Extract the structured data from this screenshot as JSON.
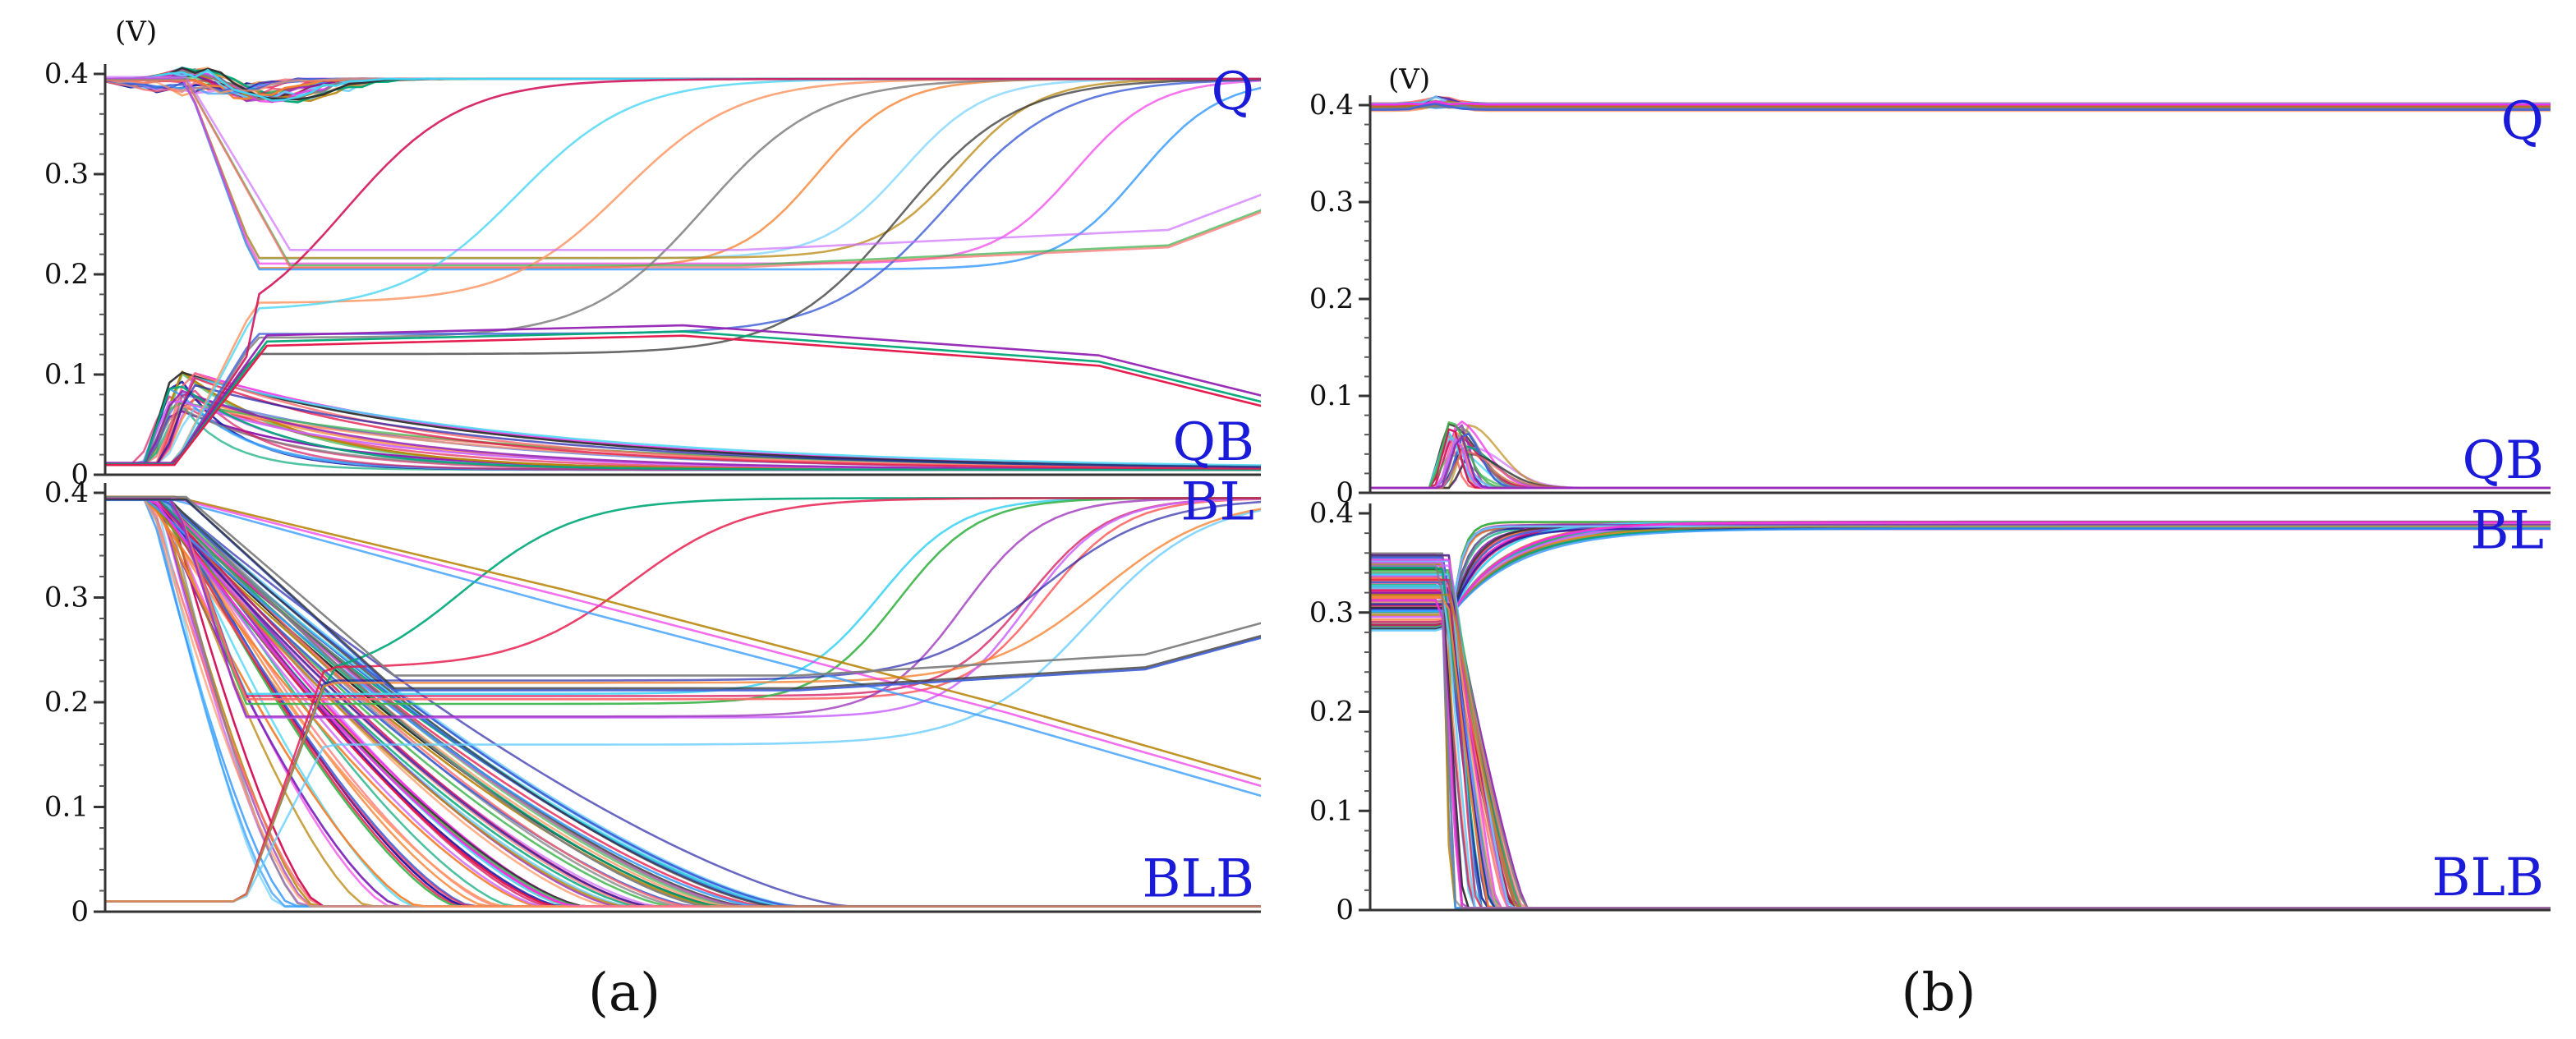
{
  "figure": {
    "panel_a_caption": "(a)",
    "panel_b_caption": "(b)"
  },
  "chart_data": [
    {
      "type": "line",
      "panel": "(a)",
      "unit_label": "(V)",
      "xlabel": "",
      "ylabel": "",
      "grid": false,
      "legend": "none",
      "trace_palette": [
        "#e6194b",
        "#3cb44b",
        "#4363d8",
        "#f58231",
        "#911eb4",
        "#42d4f4",
        "#f032e6",
        "#1a1aa6",
        "#ff6b6b",
        "#2f2f2f",
        "#b8860b",
        "#00a878",
        "#d4145a",
        "#7f7f7f",
        "#66ccff",
        "#cc66ff",
        "#ff9966",
        "#3399ff"
      ],
      "subplots": [
        {
          "name": "top",
          "ylim": [
            0,
            0.4
          ],
          "yticks": [
            "0",
            "0.1",
            "0.2",
            "0.3",
            "0.4"
          ],
          "signal_labels": [
            {
              "text": "Q",
              "y": 0.36
            },
            {
              "text": "QB",
              "y": 0.01
            }
          ],
          "groups": [
            {
              "count": 30,
              "kind": "sigmoid",
              "y0": 0.395,
              "y1": 0.395,
              "t_mid": 0.12,
              "t_mid_spread": 0.05,
              "rate": 0.04,
              "bump": 0.015,
              "bump_t": 0.08
            },
            {
              "count": 26,
              "kind": "relax",
              "y0": 0.01,
              "y_peak": 0.085,
              "y_peak_spread": 0.02,
              "y1": 0.005,
              "t_start": 0.04,
              "t_start_spread": 0.012,
              "decay": 0.18,
              "decay_spread": 0.14
            },
            {
              "count": 5,
              "kind": "dip_recover",
              "y0": 0.395,
              "y_mid": 0.21,
              "y_mid_spread": 0.01,
              "y1": 0.395,
              "t_start": 0.07,
              "t_rise": 0.72,
              "t_rise_spread": 0.2
            },
            {
              "count": 6,
              "kind": "cross_up",
              "y0": 0.01,
              "y_mid": 0.15,
              "y_mid_spread": 0.04,
              "y1": 0.395,
              "t_start": 0.06,
              "t_rise": 0.55,
              "t_rise_spread": 0.35
            },
            {
              "count": 3,
              "kind": "fixed",
              "points": [
                [
                  0,
                  0.395
                ],
                [
                  0.07,
                  0.395
                ],
                [
                  0.16,
                  0.215
                ],
                [
                  0.55,
                  0.215
                ],
                [
                  0.92,
                  0.235
                ],
                [
                  1,
                  0.27
                ]
              ]
            },
            {
              "count": 3,
              "kind": "fixed",
              "points": [
                [
                  0,
                  0.01
                ],
                [
                  0.06,
                  0.01
                ],
                [
                  0.14,
                  0.13
                ],
                [
                  0.5,
                  0.14
                ],
                [
                  0.86,
                  0.11
                ],
                [
                  1,
                  0.07
                ]
              ]
            }
          ]
        },
        {
          "name": "bottom",
          "ylim": [
            0,
            0.4
          ],
          "yticks": [
            "0",
            "0.1",
            "0.2",
            "0.3",
            "0.4"
          ],
          "signal_labels": [
            {
              "text": "BL",
              "y": 0.37
            },
            {
              "text": "BLB",
              "y": 0.01
            }
          ],
          "groups": [
            {
              "count": 70,
              "kind": "decay",
              "y0": 0.395,
              "y1": 0.005,
              "t_start": 0.045,
              "t_start_spread": 0.01,
              "t_end": 0.14,
              "t_end_spread": 0.5
            },
            {
              "count": 6,
              "kind": "dip_recover",
              "y0": 0.395,
              "y_mid": 0.2,
              "y_mid_spread": 0.015,
              "y1": 0.395,
              "t_start": 0.06,
              "t_rise": 0.72,
              "t_rise_spread": 0.2
            },
            {
              "count": 5,
              "kind": "cross_up",
              "y0": 0.01,
              "y_mid": 0.2,
              "y_mid_spread": 0.05,
              "y1": 0.395,
              "t_start": 0.12,
              "t_rise": 0.6,
              "t_rise_spread": 0.3
            },
            {
              "count": 3,
              "kind": "fixed",
              "points": [
                [
                  0,
                  0.395
                ],
                [
                  0.06,
                  0.395
                ],
                [
                  0.4,
                  0.3
                ],
                [
                  0.78,
                  0.19
                ],
                [
                  1,
                  0.12
                ]
              ]
            },
            {
              "count": 3,
              "kind": "fixed",
              "points": [
                [
                  0,
                  0.395
                ],
                [
                  0.07,
                  0.395
                ],
                [
                  0.25,
                  0.22
                ],
                [
                  0.6,
                  0.22
                ],
                [
                  0.9,
                  0.24
                ],
                [
                  1,
                  0.27
                ]
              ]
            }
          ]
        }
      ]
    },
    {
      "type": "line",
      "panel": "(b)",
      "unit_label": "(V)",
      "xlabel": "",
      "ylabel": "",
      "grid": false,
      "legend": "none",
      "trace_palette": [
        "#e6194b",
        "#3cb44b",
        "#4363d8",
        "#f58231",
        "#911eb4",
        "#42d4f4",
        "#f032e6",
        "#1a1aa6",
        "#ff6b6b",
        "#2f2f2f",
        "#b8860b",
        "#00a878",
        "#d4145a",
        "#7f7f7f",
        "#66ccff",
        "#cc66ff",
        "#ff9966",
        "#3399ff"
      ],
      "subplots": [
        {
          "name": "top",
          "ylim": [
            0,
            0.4
          ],
          "yticks": [
            "0",
            "0.1",
            "0.2",
            "0.3",
            "0.4"
          ],
          "signal_labels": [
            {
              "text": "Q",
              "y": 0.36
            },
            {
              "text": "QB",
              "y": 0.01
            }
          ],
          "groups": [
            {
              "count": 24,
              "kind": "flat_bump",
              "y0": 0.398,
              "y_spread": 0.004,
              "bump": 0.008,
              "bump_t": 0.06
            },
            {
              "count": 26,
              "kind": "pulse",
              "y0": 0.005,
              "y_peak": 0.055,
              "y_peak_spread": 0.02,
              "t_peak": 0.075,
              "t_peak_spread": 0.01,
              "width": 0.025,
              "width_spread": 0.02
            }
          ]
        },
        {
          "name": "bottom",
          "ylim": [
            0,
            0.4
          ],
          "yticks": [
            "0",
            "0.1",
            "0.2",
            "0.3",
            "0.4"
          ],
          "signal_labels": [
            {
              "text": "BL",
              "y": 0.36
            },
            {
              "text": "BLB",
              "y": 0.01
            }
          ],
          "groups": [
            {
              "count": 45,
              "kind": "rise_settle",
              "y0": 0.32,
              "y0_spread": 0.04,
              "y_dip": 0.3,
              "y1": 0.388,
              "y1_spread": 0.004,
              "t_start": 0.06,
              "tau": 0.03,
              "tau_spread": 0.2
            },
            {
              "count": 55,
              "kind": "fall",
              "y0": 0.33,
              "y0_spread": 0.03,
              "y1": 0.002,
              "t_start": 0.065,
              "t_start_spread": 0.005,
              "t_end": 0.075,
              "t_end_spread": 0.06
            }
          ]
        }
      ]
    }
  ]
}
